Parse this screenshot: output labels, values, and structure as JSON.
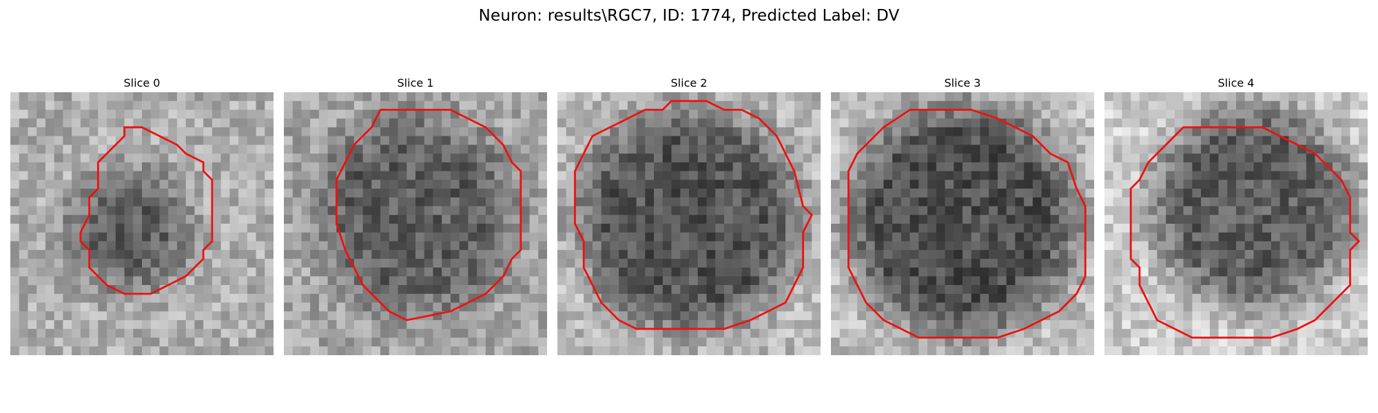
{
  "figure": {
    "title": "Neuron: results\\RGC7, ID: 1774, Predicted Label: DV"
  },
  "panels": [
    {
      "title": "Slice 0"
    },
    {
      "title": "Slice 1"
    },
    {
      "title": "Slice 2"
    },
    {
      "title": "Slice 3"
    },
    {
      "title": "Slice 4"
    }
  ],
  "colors": {
    "contour": "#ee1111",
    "background": "#ffffff",
    "colormap": "gray"
  }
}
